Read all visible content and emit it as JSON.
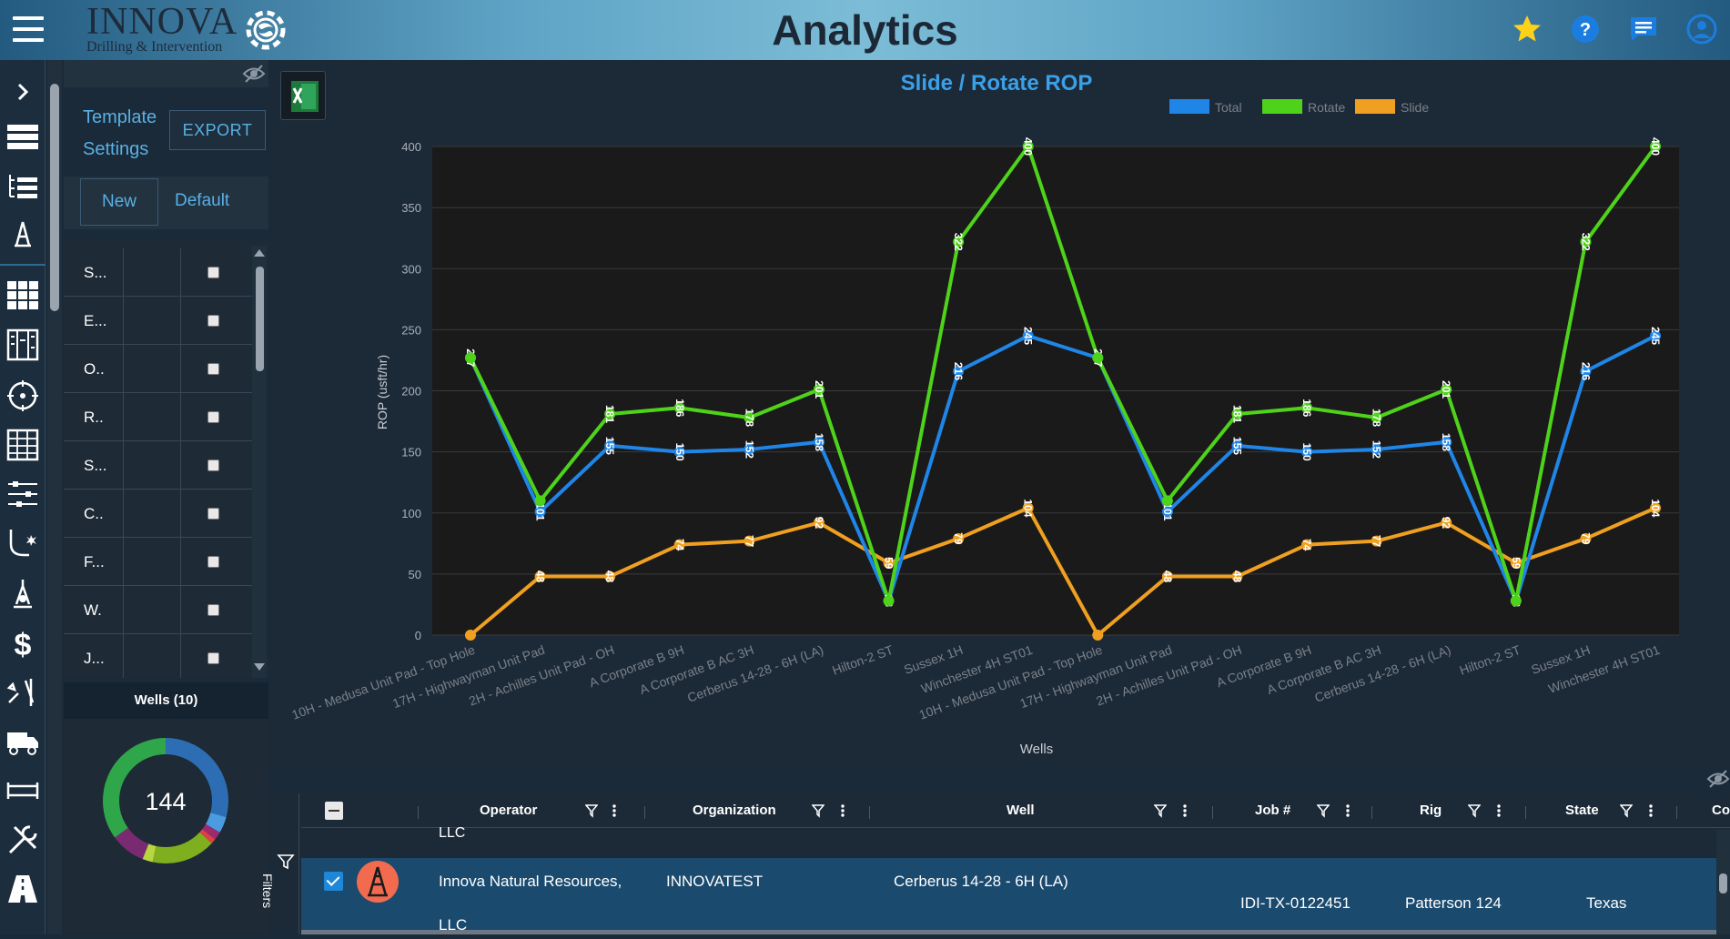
{
  "header": {
    "brand_name": "INNOVA",
    "brand_sub": "Drilling & Intervention",
    "title": "Analytics",
    "icons": [
      "star-icon",
      "help-icon",
      "chat-icon",
      "user-icon"
    ]
  },
  "rail": {
    "icons": [
      "expand-icon",
      "list-view-icon",
      "tree-list-icon",
      "rig-icon",
      "grid-icon",
      "columns-icon",
      "target-icon",
      "table-icon",
      "sliders-icon",
      "directional-icon",
      "drill-bit-icon",
      "dollar-icon",
      "tools-icon",
      "truck-icon",
      "pipe-icon",
      "wrench-icon",
      "road-icon"
    ]
  },
  "panel": {
    "template_line1": "Template",
    "template_line2": "Settings",
    "export_label": "EXPORT",
    "tab_new": "New",
    "tab_default": "Default",
    "rows": [
      {
        "label": "S..."
      },
      {
        "label": "E..."
      },
      {
        "label": "O.."
      },
      {
        "label": "R.."
      },
      {
        "label": "S..."
      },
      {
        "label": "C.."
      },
      {
        "label": "F..."
      },
      {
        "label": "W."
      },
      {
        "label": "J..."
      }
    ],
    "wells_title": "Wells (10)",
    "donut_value": "144"
  },
  "chart_data": {
    "type": "line",
    "title": "Slide / Rotate ROP",
    "xlabel": "Wells",
    "ylabel": "ROP (usft/hr)",
    "ylim": [
      0,
      400
    ],
    "yticks": [
      0,
      50,
      100,
      150,
      200,
      250,
      300,
      350,
      400
    ],
    "grid": true,
    "legend_position": "top-right",
    "categories": [
      "10H - Medusa Unit Pad - Top Hole",
      "17H - Highwayman Unit Pad",
      "2H - Achilles Unit Pad - OH",
      "A Corporate B 9H",
      "A Corporate B AC 3H",
      "Cerberus 14-28 - 6H (LA)",
      "Hilton-2 ST",
      "Sussex 1H",
      "Winchester 4H ST01",
      "10H - Medusa Unit Pad - Top Hole",
      "17H - Highwayman Unit Pad",
      "2H - Achilles Unit Pad - OH",
      "A Corporate B 9H",
      "A Corporate B AC 3H",
      "Cerberus 14-28 - 6H (LA)",
      "Hilton-2 ST",
      "Sussex 1H",
      "Winchester 4H ST01"
    ],
    "series": [
      {
        "name": "Total",
        "color": "#1f86e8",
        "values": [
          227,
          101,
          155,
          150,
          152,
          158,
          28,
          216,
          245,
          227,
          101,
          155,
          150,
          152,
          158,
          28,
          216,
          245
        ]
      },
      {
        "name": "Rotate",
        "color": "#4fd31a",
        "values": [
          227,
          110,
          181,
          186,
          178,
          201,
          28,
          322,
          400,
          227,
          110,
          181,
          186,
          178,
          201,
          28,
          322,
          400
        ]
      },
      {
        "name": "Slide",
        "color": "#f0a020",
        "values": [
          0,
          48,
          48,
          74,
          77,
          92,
          59,
          79,
          104,
          0,
          48,
          48,
          74,
          77,
          92,
          59,
          79,
          104
        ]
      }
    ],
    "data_labels": {
      "Total": [
        "227",
        "101",
        "155",
        "150",
        "152",
        "158",
        "28",
        "216",
        "245",
        "227",
        "101",
        "155",
        "150",
        "152",
        "158",
        "28",
        "216",
        "245"
      ],
      "Rotate": [
        "",
        "",
        "181",
        "186",
        "178",
        "201",
        "",
        "322",
        "400",
        "",
        "",
        "181",
        "186",
        "178",
        "201",
        "",
        "322",
        "400"
      ],
      "Slide": [
        "",
        "48",
        "48",
        "74",
        "77",
        "92",
        "59",
        "79",
        "104",
        "",
        "48",
        "48",
        "74",
        "77",
        "92",
        "59",
        "79",
        "104"
      ]
    }
  },
  "table": {
    "filters_label": "Filters",
    "columns": [
      "Operator",
      "Organization",
      "Well",
      "Job #",
      "Rig",
      "State",
      "Co"
    ],
    "prev_row_fragment": "LLC",
    "row": {
      "operator": "Innova Natural Resources,",
      "operator_cont": "LLC",
      "organization": "INNOVATEST",
      "well": "Cerberus 14-28 - 6H (LA)",
      "job": "IDI-TX-0122451",
      "rig": "Patterson 124",
      "state": "Texas"
    }
  },
  "colors": {
    "accent": "#58b0e6",
    "title_blue": "#3aa0e8",
    "total": "#1f86e8",
    "rotate": "#4fd31a",
    "slide": "#f0a020",
    "selected_row": "#1a4a6e"
  }
}
